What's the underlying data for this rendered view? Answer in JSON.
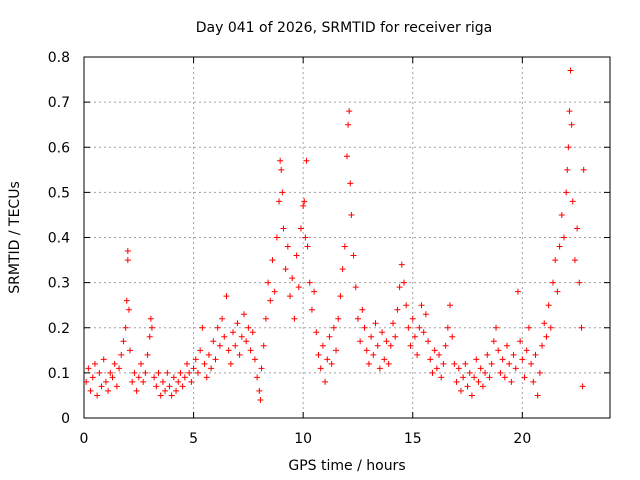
{
  "chart_data": {
    "type": "scatter",
    "title": "Day 041 of 2026, SRMTID for receiver riga",
    "xlabel": "GPS time / hours",
    "ylabel": "SRMTID / TECUs",
    "xlim": [
      0,
      24
    ],
    "ylim": [
      0,
      0.8
    ],
    "xticks": [
      0,
      5,
      10,
      15,
      20
    ],
    "xtick_labels": [
      "0",
      "5",
      "10",
      "15",
      "20"
    ],
    "yticks": [
      0,
      0.1,
      0.2,
      0.3,
      0.4,
      0.5,
      0.6,
      0.7,
      0.8
    ],
    "ytick_labels": [
      "0",
      "0.1",
      "0.2",
      "0.3",
      "0.4",
      "0.5",
      "0.6",
      "0.7",
      "0.8"
    ],
    "grid": true,
    "marker": "+",
    "color": "#ff0000",
    "series": [
      {
        "name": "SRMTID",
        "points": [
          [
            0.1,
            0.08
          ],
          [
            0.2,
            0.11
          ],
          [
            0.3,
            0.06
          ],
          [
            0.4,
            0.09
          ],
          [
            0.5,
            0.12
          ],
          [
            0.6,
            0.05
          ],
          [
            0.7,
            0.1
          ],
          [
            0.8,
            0.07
          ],
          [
            0.9,
            0.13
          ],
          [
            1.0,
            0.08
          ],
          [
            1.1,
            0.06
          ],
          [
            1.2,
            0.1
          ],
          [
            1.3,
            0.09
          ],
          [
            1.4,
            0.12
          ],
          [
            1.5,
            0.07
          ],
          [
            1.6,
            0.11
          ],
          [
            1.7,
            0.14
          ],
          [
            1.8,
            0.17
          ],
          [
            1.9,
            0.2
          ],
          [
            1.95,
            0.26
          ],
          [
            2.0,
            0.37
          ],
          [
            2.0,
            0.35
          ],
          [
            2.05,
            0.24
          ],
          [
            2.1,
            0.15
          ],
          [
            2.2,
            0.08
          ],
          [
            2.3,
            0.1
          ],
          [
            2.4,
            0.06
          ],
          [
            2.5,
            0.09
          ],
          [
            2.6,
            0.12
          ],
          [
            2.7,
            0.08
          ],
          [
            2.8,
            0.1
          ],
          [
            2.9,
            0.14
          ],
          [
            3.0,
            0.18
          ],
          [
            3.05,
            0.22
          ],
          [
            3.1,
            0.2
          ],
          [
            3.2,
            0.09
          ],
          [
            3.3,
            0.07
          ],
          [
            3.4,
            0.1
          ],
          [
            3.5,
            0.05
          ],
          [
            3.6,
            0.08
          ],
          [
            3.7,
            0.06
          ],
          [
            3.8,
            0.1
          ],
          [
            3.9,
            0.07
          ],
          [
            4.0,
            0.05
          ],
          [
            4.1,
            0.09
          ],
          [
            4.2,
            0.06
          ],
          [
            4.3,
            0.08
          ],
          [
            4.4,
            0.1
          ],
          [
            4.5,
            0.07
          ],
          [
            4.6,
            0.09
          ],
          [
            4.7,
            0.12
          ],
          [
            4.8,
            0.1
          ],
          [
            4.9,
            0.08
          ],
          [
            5.0,
            0.11
          ],
          [
            5.1,
            0.13
          ],
          [
            5.2,
            0.1
          ],
          [
            5.3,
            0.15
          ],
          [
            5.4,
            0.2
          ],
          [
            5.5,
            0.12
          ],
          [
            5.6,
            0.09
          ],
          [
            5.7,
            0.14
          ],
          [
            5.8,
            0.11
          ],
          [
            5.9,
            0.17
          ],
          [
            6.0,
            0.13
          ],
          [
            6.1,
            0.2
          ],
          [
            6.2,
            0.16
          ],
          [
            6.3,
            0.22
          ],
          [
            6.4,
            0.18
          ],
          [
            6.5,
            0.27
          ],
          [
            6.6,
            0.15
          ],
          [
            6.7,
            0.12
          ],
          [
            6.8,
            0.19
          ],
          [
            6.9,
            0.16
          ],
          [
            7.0,
            0.21
          ],
          [
            7.1,
            0.14
          ],
          [
            7.2,
            0.18
          ],
          [
            7.3,
            0.23
          ],
          [
            7.4,
            0.17
          ],
          [
            7.5,
            0.2
          ],
          [
            7.6,
            0.15
          ],
          [
            7.7,
            0.19
          ],
          [
            7.8,
            0.13
          ],
          [
            7.9,
            0.09
          ],
          [
            8.0,
            0.06
          ],
          [
            8.05,
            0.04
          ],
          [
            8.1,
            0.11
          ],
          [
            8.2,
            0.16
          ],
          [
            8.3,
            0.22
          ],
          [
            8.4,
            0.3
          ],
          [
            8.5,
            0.26
          ],
          [
            8.6,
            0.35
          ],
          [
            8.7,
            0.28
          ],
          [
            8.8,
            0.4
          ],
          [
            8.9,
            0.48
          ],
          [
            8.95,
            0.57
          ],
          [
            9.0,
            0.55
          ],
          [
            9.05,
            0.5
          ],
          [
            9.1,
            0.42
          ],
          [
            9.2,
            0.33
          ],
          [
            9.3,
            0.38
          ],
          [
            9.4,
            0.27
          ],
          [
            9.5,
            0.31
          ],
          [
            9.6,
            0.22
          ],
          [
            9.7,
            0.36
          ],
          [
            9.8,
            0.29
          ],
          [
            9.9,
            0.42
          ],
          [
            10.0,
            0.47
          ],
          [
            10.05,
            0.48
          ],
          [
            10.1,
            0.4
          ],
          [
            10.15,
            0.57
          ],
          [
            10.2,
            0.38
          ],
          [
            10.3,
            0.3
          ],
          [
            10.4,
            0.24
          ],
          [
            10.5,
            0.28
          ],
          [
            10.6,
            0.19
          ],
          [
            10.7,
            0.14
          ],
          [
            10.8,
            0.11
          ],
          [
            10.9,
            0.16
          ],
          [
            11.0,
            0.08
          ],
          [
            11.1,
            0.13
          ],
          [
            11.2,
            0.18
          ],
          [
            11.3,
            0.12
          ],
          [
            11.4,
            0.2
          ],
          [
            11.5,
            0.15
          ],
          [
            11.6,
            0.22
          ],
          [
            11.7,
            0.27
          ],
          [
            11.8,
            0.33
          ],
          [
            11.9,
            0.38
          ],
          [
            12.0,
            0.58
          ],
          [
            12.05,
            0.65
          ],
          [
            12.1,
            0.68
          ],
          [
            12.15,
            0.52
          ],
          [
            12.2,
            0.45
          ],
          [
            12.3,
            0.36
          ],
          [
            12.4,
            0.29
          ],
          [
            12.5,
            0.22
          ],
          [
            12.6,
            0.17
          ],
          [
            12.7,
            0.24
          ],
          [
            12.8,
            0.2
          ],
          [
            12.9,
            0.15
          ],
          [
            13.0,
            0.12
          ],
          [
            13.1,
            0.18
          ],
          [
            13.2,
            0.14
          ],
          [
            13.3,
            0.21
          ],
          [
            13.4,
            0.16
          ],
          [
            13.5,
            0.11
          ],
          [
            13.6,
            0.19
          ],
          [
            13.7,
            0.13
          ],
          [
            13.8,
            0.17
          ],
          [
            13.9,
            0.12
          ],
          [
            14.0,
            0.16
          ],
          [
            14.1,
            0.21
          ],
          [
            14.2,
            0.18
          ],
          [
            14.3,
            0.24
          ],
          [
            14.4,
            0.29
          ],
          [
            14.5,
            0.34
          ],
          [
            14.6,
            0.3
          ],
          [
            14.7,
            0.25
          ],
          [
            14.8,
            0.2
          ],
          [
            14.9,
            0.16
          ],
          [
            15.0,
            0.22
          ],
          [
            15.1,
            0.18
          ],
          [
            15.2,
            0.14
          ],
          [
            15.3,
            0.2
          ],
          [
            15.4,
            0.25
          ],
          [
            15.5,
            0.19
          ],
          [
            15.6,
            0.23
          ],
          [
            15.7,
            0.17
          ],
          [
            15.8,
            0.13
          ],
          [
            15.9,
            0.1
          ],
          [
            16.0,
            0.15
          ],
          [
            16.1,
            0.11
          ],
          [
            16.2,
            0.14
          ],
          [
            16.3,
            0.09
          ],
          [
            16.4,
            0.12
          ],
          [
            16.5,
            0.16
          ],
          [
            16.6,
            0.2
          ],
          [
            16.7,
            0.25
          ],
          [
            16.8,
            0.18
          ],
          [
            16.9,
            0.12
          ],
          [
            17.0,
            0.08
          ],
          [
            17.1,
            0.11
          ],
          [
            17.2,
            0.06
          ],
          [
            17.3,
            0.09
          ],
          [
            17.4,
            0.12
          ],
          [
            17.5,
            0.07
          ],
          [
            17.6,
            0.1
          ],
          [
            17.7,
            0.05
          ],
          [
            17.8,
            0.09
          ],
          [
            17.9,
            0.13
          ],
          [
            18.0,
            0.08
          ],
          [
            18.1,
            0.11
          ],
          [
            18.2,
            0.07
          ],
          [
            18.3,
            0.1
          ],
          [
            18.4,
            0.14
          ],
          [
            18.5,
            0.09
          ],
          [
            18.6,
            0.12
          ],
          [
            18.7,
            0.17
          ],
          [
            18.8,
            0.2
          ],
          [
            18.9,
            0.15
          ],
          [
            19.0,
            0.1
          ],
          [
            19.1,
            0.13
          ],
          [
            19.2,
            0.09
          ],
          [
            19.3,
            0.16
          ],
          [
            19.4,
            0.12
          ],
          [
            19.5,
            0.08
          ],
          [
            19.6,
            0.14
          ],
          [
            19.7,
            0.11
          ],
          [
            19.8,
            0.28
          ],
          [
            19.9,
            0.17
          ],
          [
            20.0,
            0.13
          ],
          [
            20.1,
            0.09
          ],
          [
            20.2,
            0.15
          ],
          [
            20.3,
            0.2
          ],
          [
            20.4,
            0.12
          ],
          [
            20.5,
            0.08
          ],
          [
            20.6,
            0.14
          ],
          [
            20.7,
            0.05
          ],
          [
            20.8,
            0.1
          ],
          [
            20.9,
            0.16
          ],
          [
            21.0,
            0.21
          ],
          [
            21.1,
            0.18
          ],
          [
            21.2,
            0.25
          ],
          [
            21.3,
            0.2
          ],
          [
            21.4,
            0.3
          ],
          [
            21.5,
            0.35
          ],
          [
            21.6,
            0.28
          ],
          [
            21.7,
            0.38
          ],
          [
            21.8,
            0.45
          ],
          [
            21.9,
            0.4
          ],
          [
            22.0,
            0.5
          ],
          [
            22.05,
            0.55
          ],
          [
            22.1,
            0.6
          ],
          [
            22.15,
            0.68
          ],
          [
            22.2,
            0.77
          ],
          [
            22.25,
            0.65
          ],
          [
            22.3,
            0.48
          ],
          [
            22.4,
            0.35
          ],
          [
            22.5,
            0.42
          ],
          [
            22.6,
            0.3
          ],
          [
            22.7,
            0.2
          ],
          [
            22.75,
            0.07
          ],
          [
            22.8,
            0.55
          ]
        ]
      }
    ]
  }
}
